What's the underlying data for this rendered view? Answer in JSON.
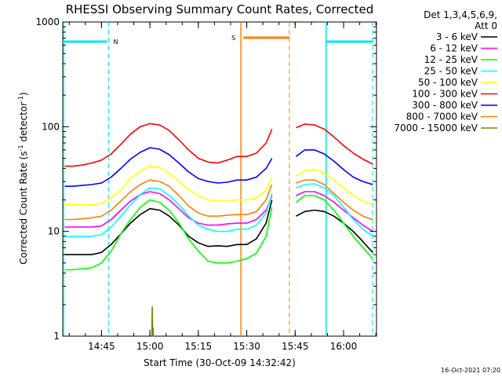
{
  "chart_data": {
    "type": "line",
    "title": "RHESSI Observing Summary Count Rates, Corrected",
    "xlabel": "Start Time (30-Oct-09 14:32:42)",
    "ylabel_main": "Corrected Count Rate (s",
    "ylabel_sup1": "-1",
    "ylabel_mid": " detector",
    "ylabel_sup2": "-1",
    "ylabel_end": ")",
    "y_scale": "log",
    "ylim": [
      1,
      1000
    ],
    "xlim": [
      14.55,
      16.17
    ],
    "x_ticks": [
      {
        "label": "14:45",
        "value": 14.75
      },
      {
        "label": "15:00",
        "value": 15.0
      },
      {
        "label": "15:15",
        "value": 15.25
      },
      {
        "label": "15:30",
        "value": 15.5
      },
      {
        "label": "15:45",
        "value": 15.75
      },
      {
        "label": "16:00",
        "value": 16.0
      }
    ],
    "y_ticks": [
      {
        "label": "1",
        "value": 1
      },
      {
        "label": "10",
        "value": 10
      },
      {
        "label": "100",
        "value": 100
      },
      {
        "label": "1000",
        "value": 1000
      }
    ],
    "legend_header": [
      "Det 1,3,4,5,6,9,",
      "Att 0"
    ],
    "legend_placement": "right",
    "timestamp": "16-Oct-2021 07:20",
    "annotations": [
      {
        "text": "N",
        "color": "#00e5ee"
      },
      {
        "text": "S",
        "color": "#ff8000"
      }
    ],
    "shading": {
      "night_bar_color": "#00e5ee",
      "night_intervals": [
        [
          14.55,
          14.787
        ],
        [
          15.91,
          16.15
        ]
      ],
      "saa_bar_color": "#ff8000",
      "saa_interval": [
        15.47,
        15.72
      ],
      "data_gap": [
        15.635,
        15.752
      ],
      "bar_level": 650
    },
    "series": [
      {
        "name": "3 - 6 keV",
        "color": "#000000",
        "values": [
          [
            14.56,
            6
          ],
          [
            14.6,
            6
          ],
          [
            14.65,
            6
          ],
          [
            14.7,
            6
          ],
          [
            14.75,
            6.3
          ],
          [
            14.8,
            7.5
          ],
          [
            14.85,
            9.5
          ],
          [
            14.9,
            12
          ],
          [
            14.95,
            14.5
          ],
          [
            15.0,
            16.5
          ],
          [
            15.05,
            16
          ],
          [
            15.1,
            14
          ],
          [
            15.15,
            11.5
          ],
          [
            15.2,
            9
          ],
          [
            15.25,
            7.8
          ],
          [
            15.3,
            7.2
          ],
          [
            15.35,
            7.3
          ],
          [
            15.4,
            7.2
          ],
          [
            15.45,
            7.5
          ],
          [
            15.5,
            7.5
          ],
          [
            15.55,
            8.5
          ],
          [
            15.6,
            12
          ],
          [
            15.63,
            20
          ],
          null,
          [
            15.755,
            14
          ],
          [
            15.8,
            15.5
          ],
          [
            15.85,
            16
          ],
          [
            15.9,
            15.5
          ],
          [
            15.95,
            14
          ],
          [
            16.0,
            12
          ],
          [
            16.05,
            10
          ],
          [
            16.1,
            8
          ],
          [
            16.15,
            6.3
          ]
        ]
      },
      {
        "name": "6 - 12 keV",
        "color": "#ff00ff",
        "values": [
          [
            14.56,
            11
          ],
          [
            14.6,
            11
          ],
          [
            14.65,
            11
          ],
          [
            14.7,
            11
          ],
          [
            14.75,
            11.3
          ],
          [
            14.8,
            13
          ],
          [
            14.85,
            16
          ],
          [
            14.9,
            19.5
          ],
          [
            14.95,
            22.5
          ],
          [
            15.0,
            24
          ],
          [
            15.05,
            23
          ],
          [
            15.1,
            20
          ],
          [
            15.15,
            16.5
          ],
          [
            15.2,
            13.5
          ],
          [
            15.25,
            12
          ],
          [
            15.3,
            11.5
          ],
          [
            15.35,
            11.5
          ],
          [
            15.4,
            11.8
          ],
          [
            15.45,
            12
          ],
          [
            15.5,
            12
          ],
          [
            15.55,
            13
          ],
          [
            15.6,
            16
          ],
          [
            15.63,
            22
          ],
          null,
          [
            15.755,
            22
          ],
          [
            15.8,
            24
          ],
          [
            15.85,
            24
          ],
          [
            15.9,
            22
          ],
          [
            15.95,
            19
          ],
          [
            16.0,
            16
          ],
          [
            16.05,
            13.5
          ],
          [
            16.1,
            11.5
          ],
          [
            16.15,
            10
          ]
        ]
      },
      {
        "name": "12 - 25 keV",
        "color": "#00ff00",
        "values": [
          [
            14.56,
            4.3
          ],
          [
            14.6,
            4.3
          ],
          [
            14.65,
            4.4
          ],
          [
            14.7,
            4.5
          ],
          [
            14.75,
            5
          ],
          [
            14.8,
            6.5
          ],
          [
            14.85,
            9.5
          ],
          [
            14.9,
            13
          ],
          [
            14.95,
            17
          ],
          [
            15.0,
            20
          ],
          [
            15.05,
            19
          ],
          [
            15.1,
            16
          ],
          [
            15.15,
            12
          ],
          [
            15.2,
            8.5
          ],
          [
            15.25,
            6.5
          ],
          [
            15.3,
            5.2
          ],
          [
            15.35,
            5
          ],
          [
            15.4,
            5
          ],
          [
            15.45,
            5.2
          ],
          [
            15.5,
            5.5
          ],
          [
            15.55,
            6.2
          ],
          [
            15.6,
            9
          ],
          [
            15.63,
            17
          ],
          null,
          [
            15.755,
            19
          ],
          [
            15.8,
            22
          ],
          [
            15.85,
            22
          ],
          [
            15.9,
            20
          ],
          [
            15.95,
            16
          ],
          [
            16.0,
            12
          ],
          [
            16.05,
            9
          ],
          [
            16.1,
            7
          ],
          [
            16.15,
            5.5
          ]
        ]
      },
      {
        "name": "25 - 50 keV",
        "color": "#00ffff",
        "values": [
          [
            14.56,
            9
          ],
          [
            14.6,
            9
          ],
          [
            14.65,
            9
          ],
          [
            14.7,
            9
          ],
          [
            14.75,
            9.3
          ],
          [
            14.8,
            11
          ],
          [
            14.85,
            14
          ],
          [
            14.9,
            18
          ],
          [
            14.95,
            22.5
          ],
          [
            15.0,
            26
          ],
          [
            15.05,
            25.5
          ],
          [
            15.1,
            22
          ],
          [
            15.15,
            18
          ],
          [
            15.2,
            14
          ],
          [
            15.25,
            11.5
          ],
          [
            15.3,
            10.5
          ],
          [
            15.35,
            10
          ],
          [
            15.4,
            10
          ],
          [
            15.45,
            10.5
          ],
          [
            15.5,
            10.5
          ],
          [
            15.55,
            11.5
          ],
          [
            15.6,
            15
          ],
          [
            15.63,
            23
          ],
          null,
          [
            15.755,
            26
          ],
          [
            15.8,
            28
          ],
          [
            15.85,
            28.5
          ],
          [
            15.9,
            26
          ],
          [
            15.95,
            22
          ],
          [
            16.0,
            17
          ],
          [
            16.05,
            13
          ],
          [
            16.1,
            10.5
          ],
          [
            16.15,
            9
          ]
        ]
      },
      {
        "name": "50 - 100 keV",
        "color": "#ffff00",
        "values": [
          [
            14.56,
            18
          ],
          [
            14.6,
            18
          ],
          [
            14.65,
            18
          ],
          [
            14.7,
            18
          ],
          [
            14.75,
            18.5
          ],
          [
            14.8,
            21
          ],
          [
            14.85,
            25
          ],
          [
            14.9,
            32
          ],
          [
            14.95,
            38
          ],
          [
            15.0,
            42
          ],
          [
            15.05,
            41
          ],
          [
            15.1,
            36
          ],
          [
            15.15,
            30
          ],
          [
            15.2,
            25
          ],
          [
            15.25,
            22
          ],
          [
            15.3,
            20
          ],
          [
            15.35,
            19.5
          ],
          [
            15.4,
            19.5
          ],
          [
            15.45,
            20
          ],
          [
            15.5,
            20
          ],
          [
            15.55,
            21
          ],
          [
            15.6,
            25
          ],
          [
            15.63,
            33
          ],
          null,
          [
            15.755,
            34
          ],
          [
            15.8,
            38
          ],
          [
            15.85,
            39
          ],
          [
            15.9,
            36
          ],
          [
            15.95,
            31
          ],
          [
            16.0,
            26
          ],
          [
            16.05,
            22
          ],
          [
            16.1,
            19.5
          ],
          [
            16.15,
            18
          ]
        ]
      },
      {
        "name": "100 - 300 keV",
        "color": "#ff0000",
        "values": [
          [
            14.56,
            42
          ],
          [
            14.6,
            42
          ],
          [
            14.65,
            43
          ],
          [
            14.7,
            45
          ],
          [
            14.75,
            48
          ],
          [
            14.8,
            55
          ],
          [
            14.85,
            68
          ],
          [
            14.9,
            85
          ],
          [
            14.95,
            100
          ],
          [
            15.0,
            107
          ],
          [
            15.05,
            104
          ],
          [
            15.1,
            92
          ],
          [
            15.15,
            75
          ],
          [
            15.2,
            60
          ],
          [
            15.25,
            50
          ],
          [
            15.3,
            46
          ],
          [
            15.35,
            45
          ],
          [
            15.4,
            48
          ],
          [
            15.45,
            52
          ],
          [
            15.5,
            52
          ],
          [
            15.55,
            56
          ],
          [
            15.6,
            70
          ],
          [
            15.63,
            95
          ],
          null,
          [
            15.755,
            98
          ],
          [
            15.8,
            106
          ],
          [
            15.85,
            104
          ],
          [
            15.9,
            95
          ],
          [
            15.95,
            80
          ],
          [
            16.0,
            66
          ],
          [
            16.05,
            56
          ],
          [
            16.1,
            49
          ],
          [
            16.15,
            44
          ]
        ]
      },
      {
        "name": "300 - 800 keV",
        "color": "#0000ff",
        "values": [
          [
            14.56,
            27
          ],
          [
            14.6,
            27
          ],
          [
            14.65,
            27.5
          ],
          [
            14.7,
            28
          ],
          [
            14.75,
            29
          ],
          [
            14.8,
            33
          ],
          [
            14.85,
            40
          ],
          [
            14.9,
            49
          ],
          [
            14.95,
            57
          ],
          [
            15.0,
            63
          ],
          [
            15.05,
            61
          ],
          [
            15.1,
            54
          ],
          [
            15.15,
            45
          ],
          [
            15.2,
            37
          ],
          [
            15.25,
            32
          ],
          [
            15.3,
            30
          ],
          [
            15.35,
            29
          ],
          [
            15.4,
            29.5
          ],
          [
            15.45,
            31
          ],
          [
            15.5,
            31
          ],
          [
            15.55,
            33
          ],
          [
            15.6,
            40
          ],
          [
            15.63,
            50
          ],
          null,
          [
            15.755,
            52
          ],
          [
            15.8,
            60
          ],
          [
            15.85,
            60
          ],
          [
            15.9,
            55
          ],
          [
            15.95,
            47
          ],
          [
            16.0,
            39
          ],
          [
            16.05,
            33
          ],
          [
            16.1,
            30
          ],
          [
            16.15,
            28
          ]
        ]
      },
      {
        "name": "800 - 7000 keV",
        "color": "#ff8000",
        "values": [
          [
            14.56,
            13
          ],
          [
            14.6,
            13
          ],
          [
            14.65,
            13.2
          ],
          [
            14.7,
            13.5
          ],
          [
            14.75,
            14
          ],
          [
            14.8,
            16
          ],
          [
            14.85,
            19.5
          ],
          [
            14.9,
            24
          ],
          [
            14.95,
            28
          ],
          [
            15.0,
            31
          ],
          [
            15.05,
            30
          ],
          [
            15.1,
            27
          ],
          [
            15.15,
            22
          ],
          [
            15.2,
            17.5
          ],
          [
            15.25,
            15
          ],
          [
            15.3,
            14
          ],
          [
            15.35,
            14
          ],
          [
            15.4,
            14.3
          ],
          [
            15.45,
            14.5
          ],
          [
            15.5,
            14.5
          ],
          [
            15.55,
            15.5
          ],
          [
            15.6,
            20
          ],
          [
            15.63,
            28
          ],
          null,
          [
            15.755,
            29
          ],
          [
            15.8,
            31
          ],
          [
            15.85,
            31
          ],
          [
            15.9,
            28
          ],
          [
            15.95,
            23
          ],
          [
            16.0,
            19
          ],
          [
            16.05,
            16
          ],
          [
            16.1,
            14
          ],
          [
            16.15,
            13
          ]
        ]
      },
      {
        "name": "7000 - 15000 keV",
        "color": "#808000",
        "values": [
          [
            15.01,
            1
          ],
          [
            15.012,
            1.9
          ],
          [
            15.014,
            1
          ],
          [
            15.016,
            1.2
          ],
          [
            15.018,
            1
          ]
        ]
      }
    ]
  }
}
